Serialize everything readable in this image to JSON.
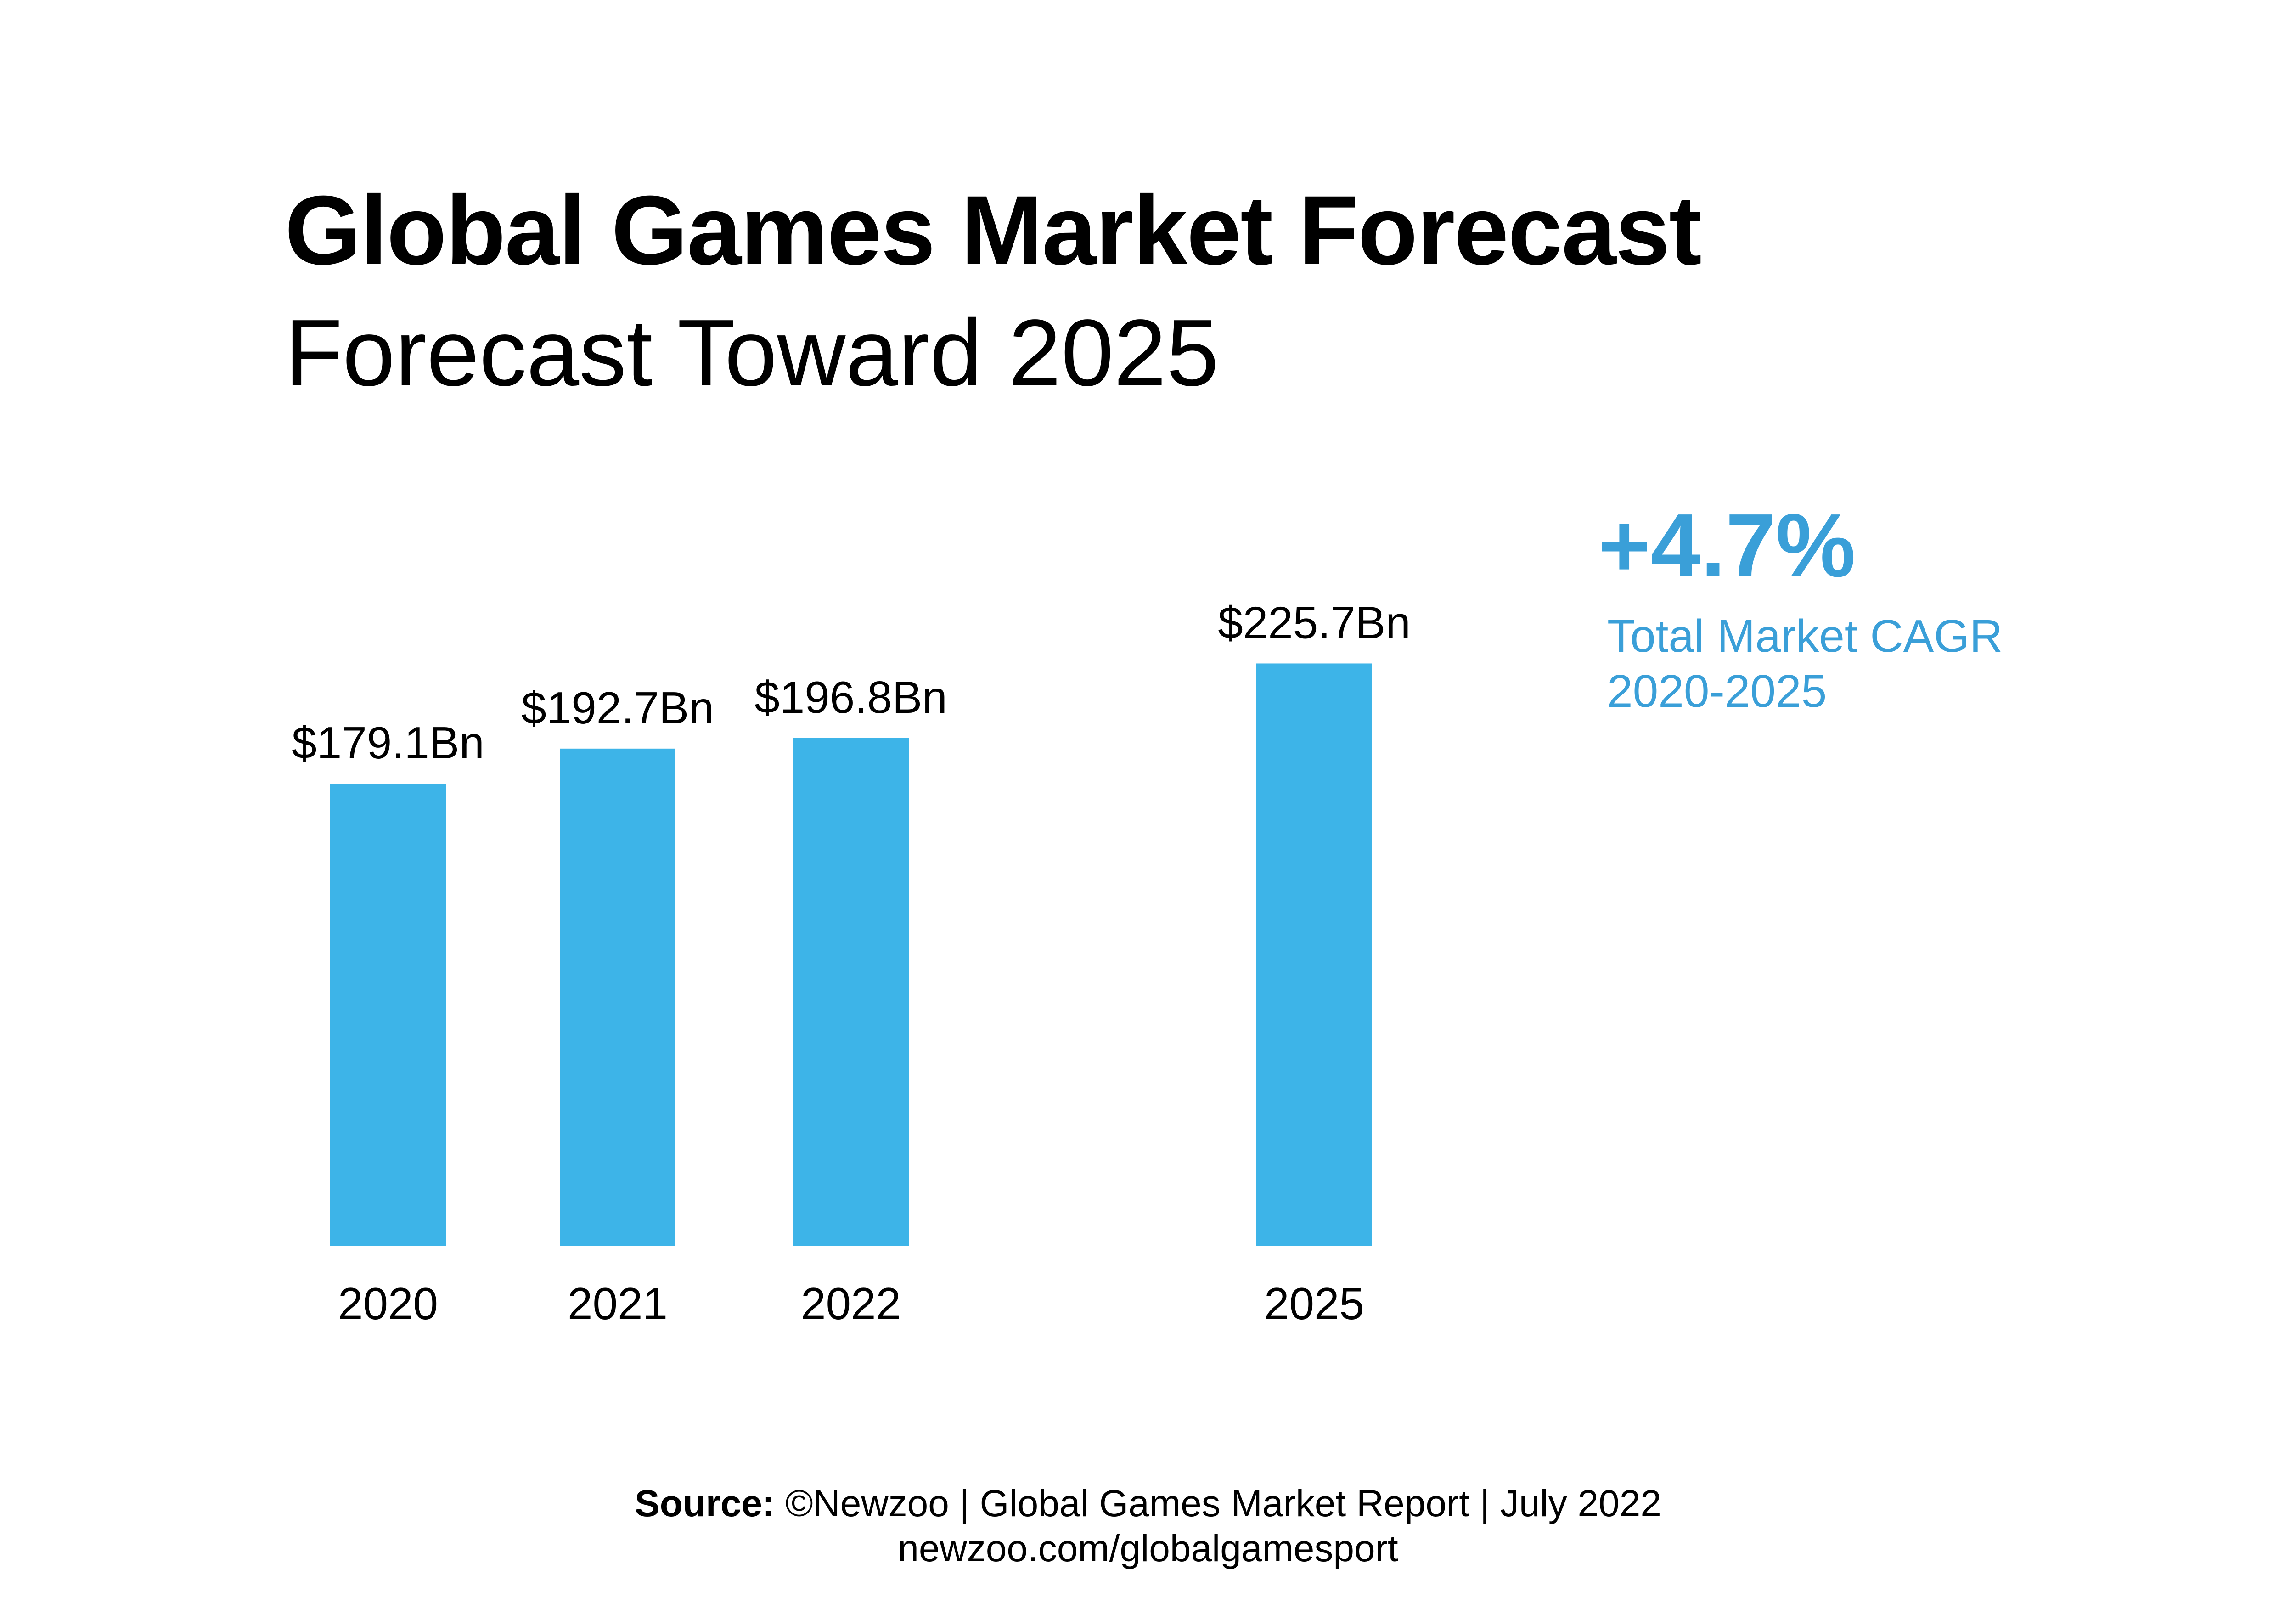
{
  "colors": {
    "bar": "#3db4e8",
    "accent": "#3a9fd8",
    "text": "#000000",
    "background": "#ffffff"
  },
  "cagr": {
    "value": "+4.7%",
    "label_line1": "Total Market CAGR",
    "label_line2": "2020-2025"
  },
  "source": {
    "prefix": "Source:",
    "text": "©Newzoo | Global Games Market Report | July 2022",
    "url": "newzoo.com/globalgamesport"
  },
  "chart_data": {
    "type": "bar",
    "title": "Global Games Market Forecast",
    "subtitle": "Forecast Toward 2025",
    "categories": [
      "2020",
      "2021",
      "2022",
      "2025"
    ],
    "values": [
      179.1,
      192.7,
      196.8,
      225.7
    ],
    "data_labels": [
      "$179.1Bn",
      "$192.7Bn",
      "$196.8Bn",
      "$225.7Bn"
    ],
    "xlabel": "",
    "ylabel": "",
    "grid": false,
    "legend": "none"
  }
}
